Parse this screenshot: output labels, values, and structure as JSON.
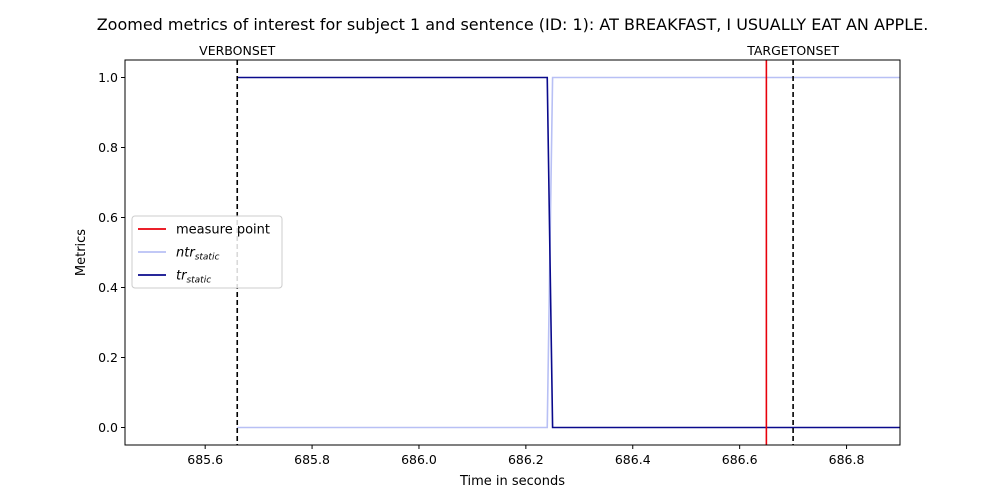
{
  "chart_data": {
    "type": "line",
    "title": "Zoomed metrics of interest for subject 1 and sentence (ID: 1):  AT BREAKFAST, I USUALLY EAT AN APPLE.",
    "xlabel": "Time in seconds",
    "ylabel": "Metrics",
    "xlim": [
      685.45,
      686.9
    ],
    "ylim": [
      -0.05,
      1.05
    ],
    "xticks": [
      685.6,
      685.8,
      686.0,
      686.2,
      686.4,
      686.6,
      686.8
    ],
    "xtick_labels": [
      "685.6",
      "685.8",
      "686.0",
      "686.2",
      "686.4",
      "686.6",
      "686.8"
    ],
    "yticks": [
      0.0,
      0.2,
      0.4,
      0.6,
      0.8,
      1.0
    ],
    "ytick_labels": [
      "0.0",
      "0.2",
      "0.4",
      "0.6",
      "0.8",
      "1.0"
    ],
    "grid": false,
    "legend_position": "center-left",
    "series": [
      {
        "name": "ntr",
        "name_subscript": "static",
        "color": "#b8c0f5",
        "x": [
          685.66,
          686.24,
          686.25,
          686.9
        ],
        "y": [
          0,
          0,
          1,
          1
        ]
      },
      {
        "name": "tr",
        "name_subscript": "static",
        "color": "#0a0a8c",
        "x": [
          685.66,
          686.24,
          686.25,
          686.9
        ],
        "y": [
          1,
          1,
          0,
          0
        ]
      }
    ],
    "measure_point": {
      "name": "measure point",
      "x": 686.65,
      "color": "#e8000b"
    },
    "event_lines": [
      {
        "label": "VERBONSET",
        "x": 685.66,
        "color": "#000000"
      },
      {
        "label": "TARGETONSET",
        "x": 686.7,
        "color": "#000000"
      }
    ]
  }
}
